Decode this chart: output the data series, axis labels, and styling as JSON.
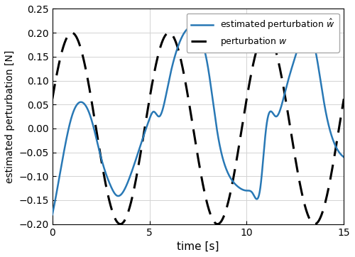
{
  "title": "",
  "xlabel": "time [s]",
  "ylabel": "estimated perturbation [N]",
  "xlim": [
    0,
    15
  ],
  "ylim": [
    -0.2,
    0.25
  ],
  "yticks": [
    -0.2,
    -0.15,
    -0.1,
    -0.05,
    0,
    0.05,
    0.1,
    0.15,
    0.2,
    0.25
  ],
  "xticks": [
    0,
    5,
    10,
    15
  ],
  "legend_entries": [
    "estimated perturbation $\\hat{w}$",
    "perturbation $w$"
  ],
  "line1_color": "#2878b5",
  "line2_color": "#000000",
  "background_color": "#ffffff",
  "grid_color": "#d3d3d3",
  "t_max": 15.0,
  "dt": 0.005
}
